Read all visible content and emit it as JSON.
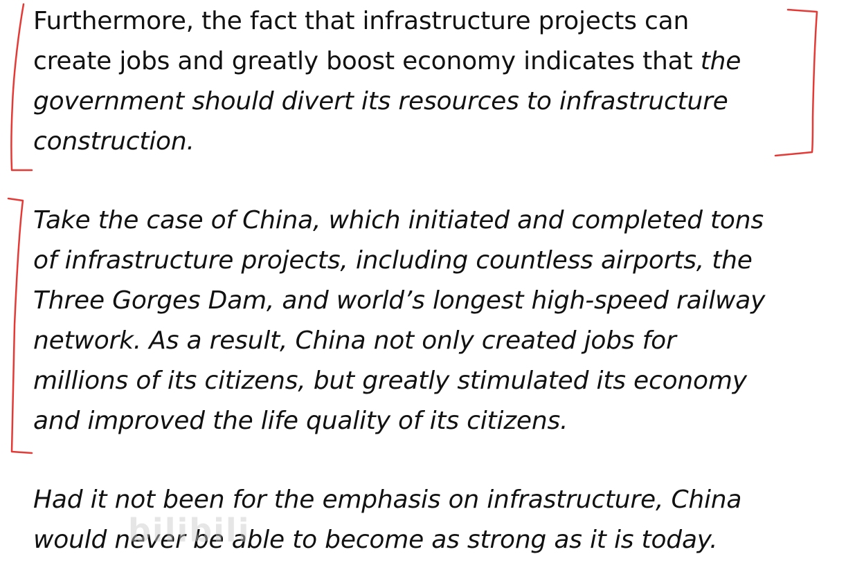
{
  "paragraphs": {
    "p1": {
      "line1": "Furthermore, the fact that infrastructure projects can",
      "line2_normal": "create jobs and greatly boost economy indicates that ",
      "line2_italic": "the",
      "line3": "government should divert its resources to infrastructure",
      "line4": "construction."
    },
    "p2": {
      "line1": "Take the case of China, which initiated and completed tons",
      "line2": "of infrastructure projects, including countless airports, the",
      "line3": "Three Gorges Dam, and world’s longest high-speed railway",
      "line4": "network. As a result, China not only created jobs for",
      "line5": "millions of its citizens, but greatly stimulated its economy",
      "line6": "and improved the life quality of its citizens."
    },
    "p3": {
      "line1": "Had it not been for the emphasis on infrastructure, China",
      "line2": "would never be able to become as strong as it is today."
    }
  },
  "watermark": "bilibili",
  "colors": {
    "annotation": "#e53935",
    "text": "#111111",
    "background": "#ffffff"
  }
}
